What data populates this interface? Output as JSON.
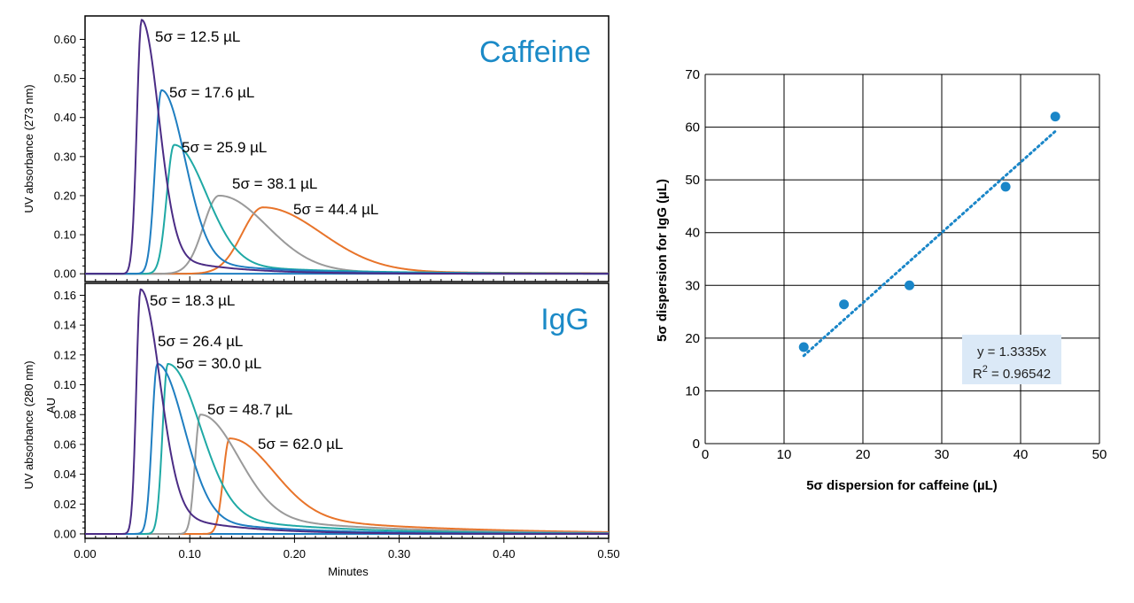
{
  "colors": {
    "purple": "#4b2c85",
    "blue": "#1f7ec1",
    "teal": "#1fa9a5",
    "gray": "#9a9a9a",
    "orange": "#e8742a",
    "title_blue": "#1b8ac7",
    "scatter_blue": "#1a86c8",
    "eq_box": "#dbe9f7"
  },
  "chart_data": [
    {
      "type": "line",
      "title": "Caffeine",
      "xlabel": "",
      "ylabel": "UV absorbance (273 nm)",
      "xlim": [
        0,
        0.5
      ],
      "ylim": [
        -0.02,
        0.66
      ],
      "y_ticks": [
        "0.00",
        "0.10",
        "0.20",
        "0.30",
        "0.40",
        "0.50",
        "0.60"
      ],
      "series": [
        {
          "label": "5σ = 12.5 µL",
          "color": "purple",
          "peak_x": 0.054,
          "peak_y": 0.65,
          "w_left": 0.0045,
          "w_right": 0.016,
          "tail": 0.1
        },
        {
          "label": "5σ = 17.6 µL",
          "color": "blue",
          "peak_x": 0.073,
          "peak_y": 0.47,
          "w_left": 0.006,
          "w_right": 0.022,
          "tail": 0.1
        },
        {
          "label": "5σ = 25.9 µL",
          "color": "teal",
          "peak_x": 0.085,
          "peak_y": 0.33,
          "w_left": 0.007,
          "w_right": 0.03,
          "tail": 0.1
        },
        {
          "label": "5σ = 38.1 µL",
          "color": "gray",
          "peak_x": 0.128,
          "peak_y": 0.2,
          "w_left": 0.015,
          "w_right": 0.045,
          "tail": 0.05
        },
        {
          "label": "5σ = 44.4 µL",
          "color": "orange",
          "peak_x": 0.17,
          "peak_y": 0.17,
          "w_left": 0.02,
          "w_right": 0.055,
          "tail": 0.05
        }
      ]
    },
    {
      "type": "line",
      "title": "IgG",
      "xlabel": "Minutes",
      "ylabel": "UV absorbance (280 nm)",
      "ylabel2": "AU",
      "xlim": [
        0,
        0.5
      ],
      "ylim": [
        -0.003,
        0.168
      ],
      "y_ticks": [
        "0.00",
        "0.02",
        "0.04",
        "0.06",
        "0.08",
        "0.10",
        "0.12",
        "0.14",
        "0.16"
      ],
      "x_ticks": [
        "0.00",
        "0.10",
        "0.20",
        "0.30",
        "0.40",
        "0.50"
      ],
      "series": [
        {
          "label": "5σ = 18.3 µL",
          "color": "purple",
          "peak_x": 0.053,
          "peak_y": 0.164,
          "w_left": 0.004,
          "w_right": 0.018,
          "tail": 0.12
        },
        {
          "label": "5σ = 26.4 µL",
          "color": "blue",
          "peak_x": 0.069,
          "peak_y": 0.114,
          "w_left": 0.005,
          "w_right": 0.025,
          "tail": 0.12
        },
        {
          "label": "5σ = 30.0 µL",
          "color": "teal",
          "peak_x": 0.079,
          "peak_y": 0.114,
          "w_left": 0.005,
          "w_right": 0.03,
          "tail": 0.15
        },
        {
          "label": "5σ = 48.7 µL",
          "color": "gray",
          "peak_x": 0.11,
          "peak_y": 0.08,
          "w_left": 0.005,
          "w_right": 0.035,
          "tail": 0.2
        },
        {
          "label": "5σ = 62.0 µL",
          "color": "orange",
          "peak_x": 0.138,
          "peak_y": 0.064,
          "w_left": 0.006,
          "w_right": 0.04,
          "tail": 0.25
        }
      ]
    },
    {
      "type": "scatter",
      "xlabel": "5σ dispersion for caffeine (µL)",
      "ylabel": "5σ dispersion for IgG (µL)",
      "xlim": [
        0,
        50
      ],
      "ylim": [
        0,
        70
      ],
      "x_ticks": [
        "0",
        "10",
        "20",
        "30",
        "40",
        "50"
      ],
      "y_ticks": [
        "0",
        "10",
        "20",
        "30",
        "40",
        "50",
        "60",
        "70"
      ],
      "grid": true,
      "points": [
        {
          "x": 12.5,
          "y": 18.3
        },
        {
          "x": 17.6,
          "y": 26.4
        },
        {
          "x": 25.9,
          "y": 30.0
        },
        {
          "x": 38.1,
          "y": 48.7
        },
        {
          "x": 44.4,
          "y": 62.0
        }
      ],
      "trendline": {
        "type": "linear",
        "slope": 1.3335,
        "x_range": [
          12.5,
          44.4
        ]
      },
      "equation": "y = 1.3335x",
      "r2_prefix": "R",
      "r2_sup": "2",
      "r2_suffix": " = 0.96542"
    }
  ]
}
